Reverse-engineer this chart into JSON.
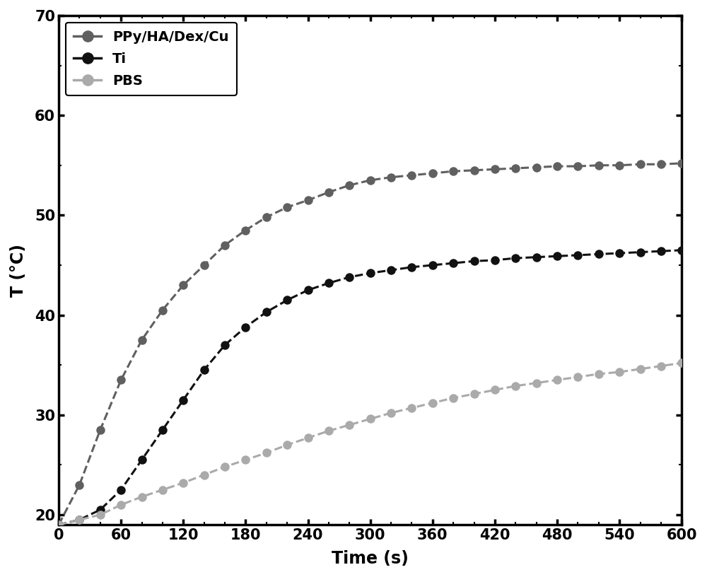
{
  "series": [
    {
      "label": "PPy/HA/Dex/Cu",
      "color": "#606060",
      "linestyle": "-",
      "x": [
        0,
        20,
        40,
        60,
        80,
        100,
        120,
        140,
        160,
        180,
        200,
        220,
        240,
        260,
        280,
        300,
        320,
        340,
        360,
        380,
        400,
        420,
        440,
        460,
        480,
        500,
        520,
        540,
        560,
        580,
        600
      ],
      "y": [
        19.0,
        23.0,
        28.5,
        33.5,
        37.5,
        40.5,
        43.0,
        45.0,
        47.0,
        48.5,
        49.8,
        50.8,
        51.5,
        52.3,
        53.0,
        53.5,
        53.8,
        54.0,
        54.2,
        54.4,
        54.5,
        54.6,
        54.7,
        54.8,
        54.9,
        54.9,
        55.0,
        55.0,
        55.1,
        55.1,
        55.2
      ]
    },
    {
      "label": "Ti",
      "color": "#111111",
      "linestyle": "-",
      "x": [
        0,
        20,
        40,
        60,
        80,
        100,
        120,
        140,
        160,
        180,
        200,
        220,
        240,
        260,
        280,
        300,
        320,
        340,
        360,
        380,
        400,
        420,
        440,
        460,
        480,
        500,
        520,
        540,
        560,
        580,
        600
      ],
      "y": [
        19.0,
        19.5,
        20.5,
        22.5,
        25.5,
        28.5,
        31.5,
        34.5,
        37.0,
        38.8,
        40.3,
        41.5,
        42.5,
        43.2,
        43.8,
        44.2,
        44.5,
        44.8,
        45.0,
        45.2,
        45.4,
        45.5,
        45.7,
        45.8,
        45.9,
        46.0,
        46.1,
        46.2,
        46.3,
        46.4,
        46.5
      ]
    },
    {
      "label": "PBS",
      "color": "#aaaaaa",
      "linestyle": "-",
      "x": [
        0,
        20,
        40,
        60,
        80,
        100,
        120,
        140,
        160,
        180,
        200,
        220,
        240,
        260,
        280,
        300,
        320,
        340,
        360,
        380,
        400,
        420,
        440,
        460,
        480,
        500,
        520,
        540,
        560,
        580,
        600
      ],
      "y": [
        19.0,
        19.5,
        20.0,
        21.0,
        21.8,
        22.5,
        23.2,
        24.0,
        24.8,
        25.5,
        26.2,
        27.0,
        27.7,
        28.4,
        29.0,
        29.6,
        30.2,
        30.7,
        31.2,
        31.7,
        32.1,
        32.5,
        32.9,
        33.2,
        33.5,
        33.8,
        34.1,
        34.3,
        34.6,
        34.9,
        35.2
      ]
    }
  ],
  "xlim": [
    0,
    600
  ],
  "ylim": [
    19.0,
    70
  ],
  "xticks": [
    0,
    60,
    120,
    180,
    240,
    300,
    360,
    420,
    480,
    540,
    600
  ],
  "yticks": [
    20,
    30,
    40,
    50,
    60,
    70
  ],
  "xlabel": "Time (s)",
  "ylabel": "T (°C)",
  "marker": "o",
  "markersize": 9,
  "linewidth": 2.2,
  "legend_loc": "upper left",
  "background_color": "#ffffff",
  "figure_size": [
    10.0,
    8.16
  ],
  "dpi": 100
}
